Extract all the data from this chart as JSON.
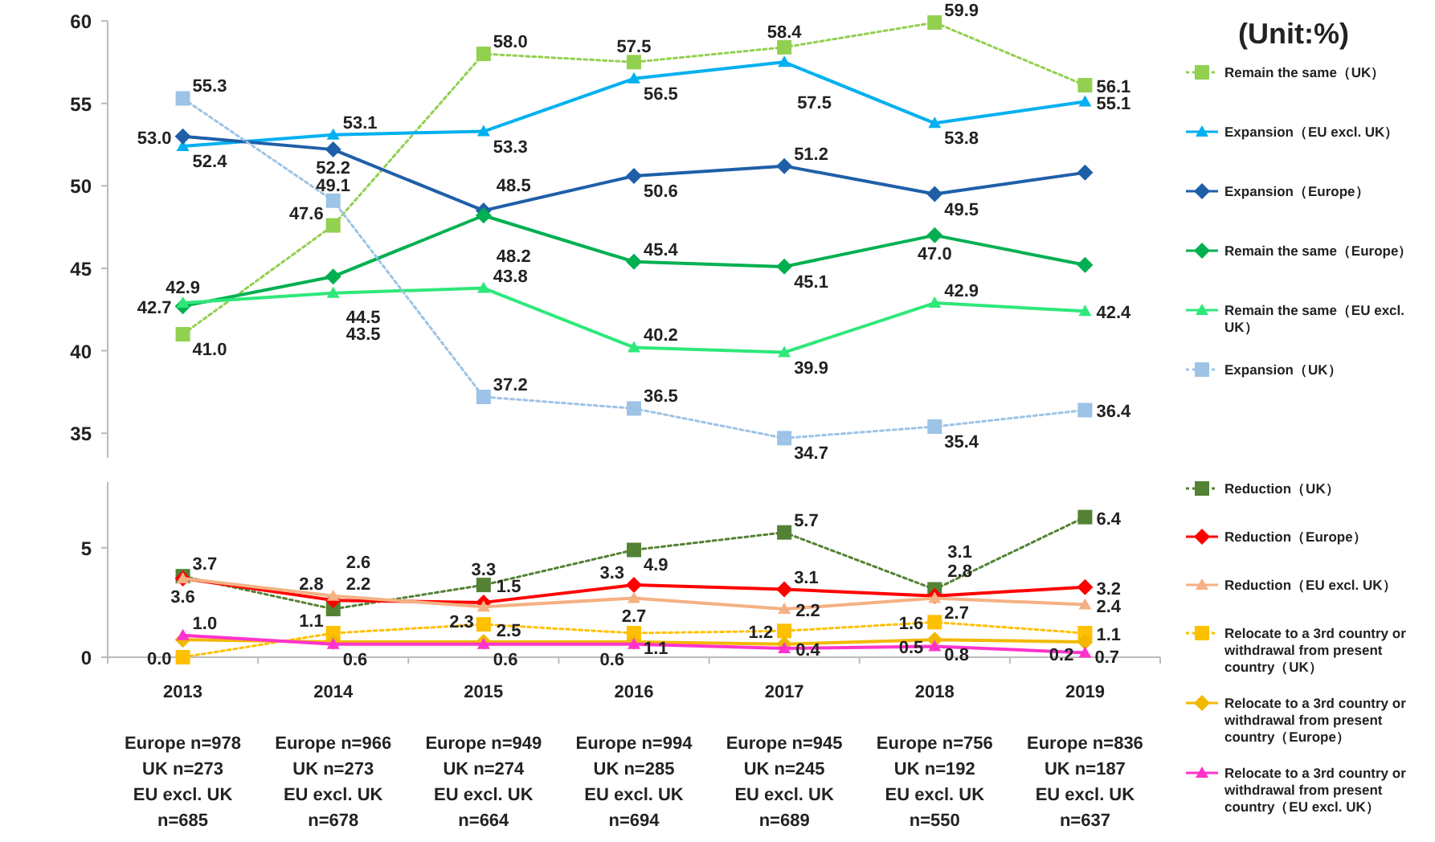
{
  "chart_data": [
    {
      "type": "line",
      "categories": [
        null,
        null,
        null,
        null,
        null,
        null,
        null
      ],
      "ylim": [
        33.5,
        60
      ],
      "yticks": [
        35,
        40,
        45,
        50,
        55,
        60
      ],
      "tick_labels": "y",
      "grid": false,
      "legend": "right",
      "annotations": [
        "(Unit:%)"
      ],
      "series": [
        {
          "name": "Remain the same（UK）",
          "color": "#92d050",
          "marker": "square",
          "line_style": "dotted",
          "values": [
            41.0,
            47.6,
            58.0,
            57.5,
            58.4,
            59.9,
            56.1
          ],
          "value_labels": [
            "41.0",
            "47.6",
            "58.0",
            "57.5",
            "58.4",
            "59.9",
            "56.1"
          ]
        },
        {
          "name": "Expansion（EU excl. UK）",
          "color": "#00b0f0",
          "marker": "triangle",
          "line_style": "solid",
          "values": [
            52.4,
            53.1,
            53.3,
            56.5,
            57.5,
            53.8,
            55.1
          ],
          "value_labels": [
            "52.4",
            "53.1",
            "53.3",
            "56.5",
            "57.5",
            "53.8",
            "55.1"
          ]
        },
        {
          "name": "Expansion（Europe）",
          "color": "#1f5fa8",
          "marker": "diamond",
          "line_style": "solid",
          "values": [
            53.0,
            52.2,
            48.5,
            50.6,
            51.2,
            49.5,
            50.8
          ],
          "value_labels": [
            "53.0",
            "52.2",
            "48.5",
            "50.6",
            "51.2",
            "49.5",
            null
          ]
        },
        {
          "name": "Remain the same（Europe）",
          "color": "#00b050",
          "marker": "diamond",
          "line_style": "solid",
          "values": [
            42.7,
            44.5,
            48.2,
            45.4,
            45.1,
            47.0,
            45.2
          ],
          "value_labels": [
            "42.7",
            "44.5",
            "48.2",
            "45.4",
            "45.1",
            "47.0",
            null
          ]
        },
        {
          "name": "Remain the same（EU excl. UK）",
          "color": "#2ee87a",
          "marker": "triangle",
          "line_style": "solid",
          "values": [
            42.9,
            43.5,
            43.8,
            40.2,
            39.9,
            42.9,
            42.4
          ],
          "value_labels": [
            "42.9",
            "43.5",
            "43.8",
            "40.2",
            "39.9",
            "42.9",
            "42.4"
          ]
        },
        {
          "name": "Expansion（UK）",
          "color": "#9dc3e6",
          "marker": "square",
          "line_style": "dotted",
          "values": [
            55.3,
            49.1,
            37.2,
            36.5,
            34.7,
            35.4,
            36.4
          ],
          "value_labels": [
            "55.3",
            "49.1",
            "37.2",
            "36.5",
            "34.7",
            "35.4",
            "36.4"
          ]
        }
      ]
    },
    {
      "type": "line",
      "categories": [
        "2013\n\nEurope n=978\nUK n=273\nEU excl. UK\nn=685",
        "2014\n\nEurope n=966\nUK n=273\nEU excl. UK\nn=678",
        "2015\n\nEurope n=949\nUK n=274\nEU excl. UK\nn=664",
        "2016\n\nEurope n=994\nUK n=285\nEU excl. UK\nn=694",
        "2017\n\nEurope n=945\nUK n=245\nEU excl. UK\nn=689",
        "2018\n\nEurope n=756\nUK n=192\nEU excl. UK\nn=550",
        "2019\n\nEurope n=836\nUK n=187\nEU excl. UK\nn=637"
      ],
      "ylim": [
        0,
        8
      ],
      "yticks": [
        0,
        5
      ],
      "grid": false,
      "legend": "right",
      "series": [
        {
          "name": "Reduction（UK）",
          "color": "#548235",
          "marker": "square",
          "line_style": "dotted",
          "values": [
            3.7,
            2.2,
            3.3,
            4.9,
            5.7,
            3.1,
            6.4
          ],
          "value_labels": [
            "3.7",
            "2.2",
            "3.3",
            "4.9",
            "5.7",
            "3.1",
            "6.4"
          ]
        },
        {
          "name": "Reduction（Europe）",
          "color": "#ff0000",
          "marker": "diamond",
          "line_style": "solid",
          "values": [
            3.6,
            2.6,
            2.5,
            3.3,
            3.1,
            2.8,
            3.2
          ],
          "value_labels": [
            "3.6",
            "2.6",
            "2.5",
            "3.3",
            "3.1",
            "2.8",
            "3.2"
          ]
        },
        {
          "name": "Reduction（EU excl. UK）",
          "color": "#f4b183",
          "marker": "triangle",
          "line_style": "solid",
          "values": [
            3.6,
            2.8,
            2.3,
            2.7,
            2.2,
            2.7,
            2.4
          ],
          "value_labels": [
            null,
            "2.8",
            "2.3",
            "2.7",
            "2.2",
            "2.7",
            "2.4"
          ]
        },
        {
          "name": "Relocate to a 3rd country or withdrawal from present country（UK）",
          "color": "#ffc000",
          "marker": "square",
          "line_style": "dotted",
          "values": [
            0.0,
            1.1,
            1.5,
            1.1,
            1.2,
            1.6,
            1.1
          ],
          "value_labels": [
            "0.0",
            "1.1",
            "1.5",
            "1.1",
            "1.2",
            "1.6",
            "1.1"
          ]
        },
        {
          "name": "Relocate to a 3rd country or withdrawal from present country（Europe）",
          "color": "#f2b800",
          "marker": "diamond",
          "line_style": "solid",
          "values": [
            0.8,
            0.7,
            0.7,
            0.7,
            0.6,
            0.8,
            0.7
          ],
          "value_labels": [
            null,
            null,
            null,
            null,
            null,
            "0.8",
            "0.7"
          ]
        },
        {
          "name": "Relocate to a 3rd country or withdrawal from present country（EU excl. UK）",
          "color": "#ff33cc",
          "marker": "triangle",
          "line_style": "solid",
          "values": [
            1.0,
            0.6,
            0.6,
            0.6,
            0.4,
            0.5,
            0.2
          ],
          "value_labels": [
            "1.0",
            "0.6",
            "0.6",
            "0.6",
            "0.4",
            "0.5",
            "0.2"
          ]
        }
      ]
    }
  ]
}
